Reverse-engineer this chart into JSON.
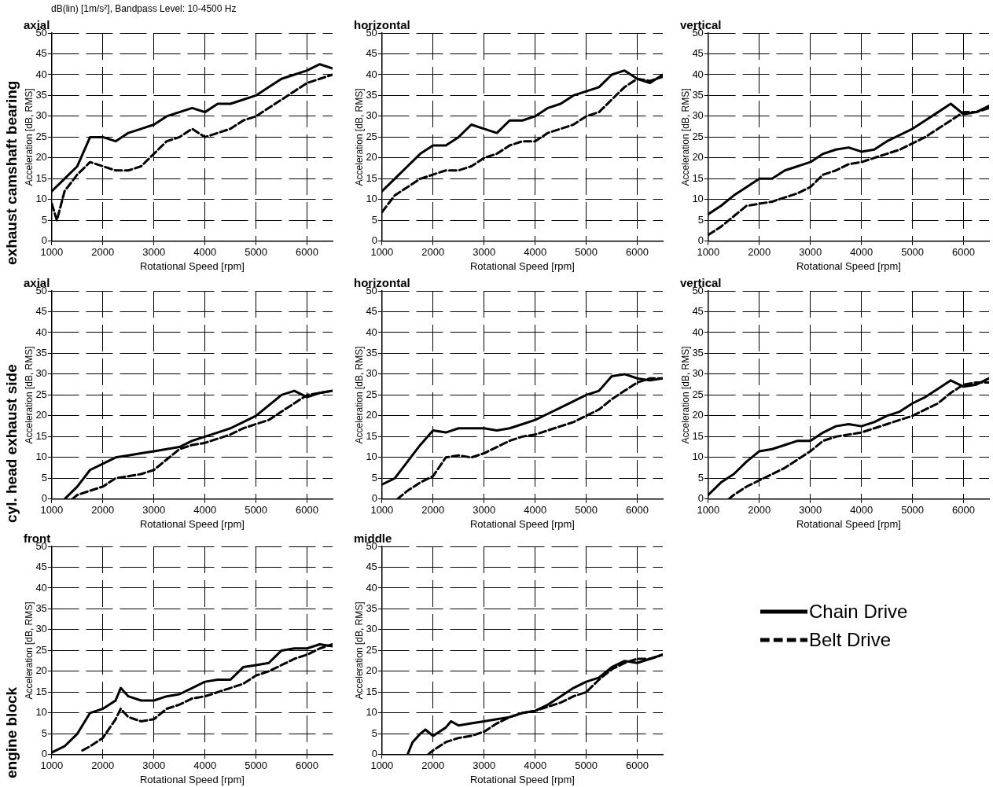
{
  "chart_data": [
    {
      "type": "line",
      "title": "axial",
      "xlabel": "Rotational Speed [rpm]",
      "ylabel": "Acceleration [dB, RMS]",
      "annotations": [
        "dB(lin) [1m/s²], Bandpass Level: 10-4500 Hz",
        "exhaust camshaft bearing"
      ],
      "xlim": [
        1000,
        6500
      ],
      "ylim": [
        0,
        50
      ],
      "xticks": [
        1000,
        2000,
        3000,
        4000,
        5000,
        6000
      ],
      "yticks": [
        0,
        5,
        10,
        15,
        20,
        25,
        30,
        35,
        40,
        45,
        50
      ],
      "grid": true,
      "series": [
        {
          "color": "#000000",
          "line_style": "solid",
          "x": [
            1000,
            1250,
            1500,
            1750,
            2000,
            2250,
            2500,
            2750,
            3000,
            3250,
            3500,
            3750,
            4000,
            4250,
            4500,
            4750,
            5000,
            5250,
            5500,
            5750,
            6000,
            6250,
            6500
          ],
          "values": [
            12,
            15,
            18,
            25,
            25,
            24,
            26,
            27,
            28,
            30,
            31,
            32,
            31,
            33,
            33,
            34,
            35,
            37,
            39,
            40,
            41,
            42.5,
            41.5
          ]
        },
        {
          "color": "#000000",
          "line_style": "dashed",
          "x": [
            1000,
            1100,
            1250,
            1500,
            1750,
            2000,
            2250,
            2500,
            2750,
            3000,
            3250,
            3500,
            3750,
            4000,
            4250,
            4500,
            4750,
            5000,
            5250,
            5500,
            5750,
            6000,
            6250,
            6500
          ],
          "values": [
            9,
            5,
            12,
            16,
            19,
            18,
            17,
            17,
            18,
            21,
            24,
            25,
            27,
            25,
            26,
            27,
            29,
            30,
            32,
            34,
            36,
            38,
            39,
            40
          ]
        }
      ]
    },
    {
      "type": "line",
      "title": "horizontal",
      "xlabel": "Rotational Speed [rpm]",
      "ylabel": "Acceleration [dB, RMS]",
      "xlim": [
        1000,
        6500
      ],
      "ylim": [
        0,
        50
      ],
      "xticks": [
        1000,
        2000,
        3000,
        4000,
        5000,
        6000
      ],
      "yticks": [
        0,
        5,
        10,
        15,
        20,
        25,
        30,
        35,
        40,
        45,
        50
      ],
      "grid": true,
      "series": [
        {
          "color": "#000000",
          "line_style": "solid",
          "x": [
            1000,
            1250,
            1500,
            1750,
            2000,
            2250,
            2500,
            2750,
            3000,
            3250,
            3500,
            3750,
            4000,
            4250,
            4500,
            4750,
            5000,
            5250,
            5500,
            5750,
            6000,
            6250,
            6500
          ],
          "values": [
            12,
            15,
            18,
            21,
            23,
            23,
            25,
            28,
            27,
            26,
            29,
            29,
            30,
            32,
            33,
            35,
            36,
            37,
            40,
            41,
            39,
            38,
            40
          ]
        },
        {
          "color": "#000000",
          "line_style": "dashed",
          "x": [
            1000,
            1250,
            1500,
            1750,
            2000,
            2250,
            2500,
            2750,
            3000,
            3250,
            3500,
            3750,
            4000,
            4250,
            4500,
            4750,
            5000,
            5250,
            5500,
            5750,
            6000,
            6250,
            6500
          ],
          "values": [
            7,
            11,
            13,
            15,
            16,
            17,
            17,
            18,
            20,
            21,
            23,
            24,
            24,
            26,
            27,
            28,
            30,
            31,
            34,
            37,
            39,
            38.5,
            39.5
          ]
        }
      ]
    },
    {
      "type": "line",
      "title": "vertical",
      "xlabel": "Rotational Speed [rpm]",
      "ylabel": "Acceleration [dB, RMS]",
      "xlim": [
        1000,
        6500
      ],
      "ylim": [
        0,
        50
      ],
      "xticks": [
        1000,
        2000,
        3000,
        4000,
        5000,
        6000
      ],
      "yticks": [
        0,
        5,
        10,
        15,
        20,
        25,
        30,
        35,
        40,
        45,
        50
      ],
      "grid": true,
      "series": [
        {
          "color": "#000000",
          "line_style": "solid",
          "x": [
            1000,
            1250,
            1500,
            1750,
            2000,
            2250,
            2500,
            2750,
            3000,
            3250,
            3500,
            3750,
            4000,
            4250,
            4500,
            4750,
            5000,
            5250,
            5500,
            5750,
            6000,
            6250,
            6500
          ],
          "values": [
            6.5,
            8.5,
            11,
            13,
            15,
            15,
            17,
            18,
            19,
            21,
            22,
            22.5,
            21.5,
            22,
            24,
            25.5,
            27,
            29,
            31,
            33,
            30.5,
            31,
            32.5
          ]
        },
        {
          "color": "#000000",
          "line_style": "dashed",
          "x": [
            1000,
            1250,
            1500,
            1750,
            2000,
            2250,
            2500,
            2750,
            3000,
            3250,
            3500,
            3750,
            4000,
            4250,
            4500,
            4750,
            5000,
            5250,
            5500,
            5750,
            6000,
            6250,
            6500
          ],
          "values": [
            1.5,
            3.5,
            6,
            8.5,
            9,
            9.5,
            10.5,
            11.5,
            13,
            16,
            17,
            18.5,
            19,
            20,
            21,
            22,
            23.5,
            25,
            27,
            29,
            31,
            31,
            32
          ]
        }
      ]
    },
    {
      "type": "line",
      "title": "axial",
      "xlabel": "Rotational Speed [rpm]",
      "ylabel": "Acceleration [dB, RMS]",
      "annotations": [
        "cyl. head exhaust side"
      ],
      "xlim": [
        1000,
        6500
      ],
      "ylim": [
        0,
        50
      ],
      "xticks": [
        1000,
        2000,
        3000,
        4000,
        5000,
        6000
      ],
      "yticks": [
        0,
        5,
        10,
        15,
        20,
        25,
        30,
        35,
        40,
        45,
        50
      ],
      "grid": true,
      "series": [
        {
          "color": "#000000",
          "line_style": "solid",
          "x": [
            1250,
            1500,
            1750,
            2000,
            2250,
            2500,
            2750,
            3000,
            3250,
            3500,
            3750,
            4000,
            4250,
            4500,
            4750,
            5000,
            5250,
            5500,
            5750,
            6000,
            6250,
            6500
          ],
          "values": [
            0,
            3,
            7,
            8.5,
            10,
            10.5,
            11,
            11.5,
            12,
            12.5,
            14,
            15,
            16,
            17,
            18.5,
            20,
            22.5,
            25,
            26,
            24.5,
            25.5,
            26
          ]
        },
        {
          "color": "#000000",
          "line_style": "dashed",
          "x": [
            1400,
            1500,
            1750,
            2000,
            2250,
            2500,
            2750,
            3000,
            3250,
            3500,
            3750,
            4000,
            4250,
            4500,
            4750,
            5000,
            5250,
            5500,
            5750,
            6000,
            6250,
            6500
          ],
          "values": [
            0,
            1,
            2,
            3,
            5,
            5.5,
            6,
            7,
            9.5,
            12,
            13,
            13.5,
            14.5,
            15.5,
            17,
            18,
            19,
            21,
            23,
            25,
            25.5,
            26
          ]
        }
      ]
    },
    {
      "type": "line",
      "title": "horizontal",
      "xlabel": "Rotational Speed [rpm]",
      "ylabel": "Acceleration [dB, RMS]",
      "xlim": [
        1000,
        6500
      ],
      "ylim": [
        0,
        50
      ],
      "xticks": [
        1000,
        2000,
        3000,
        4000,
        5000,
        6000
      ],
      "yticks": [
        0,
        5,
        10,
        15,
        20,
        25,
        30,
        35,
        40,
        45,
        50
      ],
      "grid": true,
      "series": [
        {
          "color": "#000000",
          "line_style": "solid",
          "x": [
            1000,
            1250,
            1500,
            1750,
            2000,
            2250,
            2500,
            2750,
            3000,
            3250,
            3500,
            3750,
            4000,
            4250,
            4500,
            4750,
            5000,
            5250,
            5500,
            5750,
            6000,
            6250,
            6500
          ],
          "values": [
            3.5,
            5,
            9,
            13,
            16.5,
            16,
            17,
            17,
            17,
            16.5,
            17,
            18,
            19,
            20.5,
            22,
            23.5,
            25,
            26,
            29.5,
            30,
            29,
            28.5,
            29
          ]
        },
        {
          "color": "#000000",
          "line_style": "dashed",
          "x": [
            1300,
            1500,
            1750,
            2000,
            2250,
            2500,
            2750,
            3000,
            3250,
            3500,
            3750,
            4000,
            4250,
            4500,
            4750,
            5000,
            5250,
            5500,
            5750,
            6000,
            6250,
            6500
          ],
          "values": [
            0,
            2,
            4,
            5.5,
            10,
            10.5,
            10,
            11,
            12.5,
            14,
            15,
            15.5,
            16.5,
            17.5,
            18.5,
            20,
            21.5,
            24,
            26,
            28,
            29,
            29
          ]
        }
      ]
    },
    {
      "type": "line",
      "title": "vertical",
      "xlabel": "Rotational Speed [rpm]",
      "ylabel": "Acceleration [dB, RMS]",
      "xlim": [
        1000,
        6500
      ],
      "ylim": [
        0,
        50
      ],
      "xticks": [
        1000,
        2000,
        3000,
        4000,
        5000,
        6000
      ],
      "yticks": [
        0,
        5,
        10,
        15,
        20,
        25,
        30,
        35,
        40,
        45,
        50
      ],
      "grid": true,
      "series": [
        {
          "color": "#000000",
          "line_style": "solid",
          "x": [
            1000,
            1250,
            1500,
            1750,
            2000,
            2250,
            2500,
            2750,
            3000,
            3250,
            3500,
            3750,
            4000,
            4250,
            4500,
            4750,
            5000,
            5250,
            5500,
            5750,
            6000,
            6250,
            6500
          ],
          "values": [
            1,
            4,
            6,
            9,
            11.5,
            12,
            13,
            14,
            14,
            16,
            17.5,
            18,
            17.5,
            18.5,
            20,
            21,
            23,
            24.5,
            26.5,
            28.5,
            27,
            27.5,
            29
          ]
        },
        {
          "color": "#000000",
          "line_style": "dashed",
          "x": [
            1400,
            1500,
            1750,
            2000,
            2250,
            2500,
            2750,
            3000,
            3250,
            3500,
            3750,
            4000,
            4250,
            4500,
            4750,
            5000,
            5250,
            5500,
            5750,
            6000,
            6250,
            6500
          ],
          "values": [
            0,
            1,
            3,
            4.5,
            6,
            7.5,
            9.5,
            11.5,
            14,
            15,
            15.5,
            16,
            17,
            18,
            19,
            20,
            21.5,
            23,
            25.5,
            27.5,
            28,
            28
          ]
        }
      ]
    },
    {
      "type": "line",
      "title": "front",
      "xlabel": "Rotational Speed [rpm]",
      "ylabel": "Acceleration [dB, RMS]",
      "annotations": [
        "engine block"
      ],
      "xlim": [
        1000,
        6500
      ],
      "ylim": [
        0,
        50
      ],
      "xticks": [
        1000,
        2000,
        3000,
        4000,
        5000,
        6000
      ],
      "yticks": [
        0,
        5,
        10,
        15,
        20,
        25,
        30,
        35,
        40,
        45,
        50
      ],
      "grid": true,
      "series": [
        {
          "color": "#000000",
          "line_style": "solid",
          "x": [
            1000,
            1250,
            1500,
            1750,
            2000,
            2250,
            2350,
            2500,
            2750,
            3000,
            3250,
            3500,
            3750,
            4000,
            4250,
            4500,
            4750,
            5000,
            5250,
            5500,
            5750,
            6000,
            6250,
            6500
          ],
          "values": [
            0.5,
            2,
            5,
            10,
            11,
            13,
            16,
            14,
            13,
            13,
            14,
            14.5,
            16,
            17.5,
            18,
            18,
            21,
            21.5,
            22,
            25,
            25.5,
            25.5,
            26.5,
            26
          ]
        },
        {
          "color": "#000000",
          "line_style": "dashed",
          "x": [
            1600,
            1750,
            2000,
            2250,
            2350,
            2500,
            2750,
            3000,
            3250,
            3500,
            3750,
            4000,
            4250,
            4500,
            4750,
            5000,
            5250,
            5500,
            5750,
            6000,
            6250,
            6500
          ],
          "values": [
            1,
            2,
            4,
            8.5,
            11,
            9,
            8,
            8.5,
            11,
            12,
            13.5,
            14,
            15,
            16,
            17,
            19,
            20,
            21.5,
            23,
            24,
            25.5,
            26.5
          ]
        }
      ]
    },
    {
      "type": "line",
      "title": "middle",
      "xlabel": "Rotational Speed [rpm]",
      "ylabel": "Acceleration [dB, RMS]",
      "legend": "right",
      "xlim": [
        1000,
        6500
      ],
      "ylim": [
        0,
        50
      ],
      "xticks": [
        1000,
        2000,
        3000,
        4000,
        5000,
        6000
      ],
      "yticks": [
        0,
        5,
        10,
        15,
        20,
        25,
        30,
        35,
        40,
        45,
        50
      ],
      "grid": true,
      "series": [
        {
          "name": "Chain Drive",
          "color": "#000000",
          "line_style": "solid",
          "x": [
            1500,
            1600,
            1750,
            1850,
            2000,
            2250,
            2350,
            2500,
            2750,
            3000,
            3250,
            3500,
            3750,
            4000,
            4250,
            4500,
            4750,
            5000,
            5250,
            5500,
            5750,
            6000,
            6250,
            6500
          ],
          "values": [
            0,
            3,
            5,
            6,
            4.5,
            6.5,
            8,
            7,
            7.5,
            8,
            8.5,
            9,
            10,
            10.5,
            12,
            14,
            16,
            17.5,
            18.5,
            21,
            22.5,
            22,
            23,
            24
          ]
        },
        {
          "name": "Belt Drive",
          "color": "#000000",
          "line_style": "dashed",
          "x": [
            1900,
            2000,
            2250,
            2500,
            2750,
            3000,
            3250,
            3500,
            3750,
            4000,
            4250,
            4500,
            4750,
            5000,
            5250,
            5500,
            5750,
            6000,
            6250,
            6500
          ],
          "values": [
            0,
            1,
            3,
            4,
            4.5,
            5.5,
            7.5,
            9,
            10,
            10.5,
            11.5,
            12.5,
            14,
            15,
            18,
            20.5,
            22,
            23,
            23,
            24
          ]
        }
      ]
    }
  ]
}
